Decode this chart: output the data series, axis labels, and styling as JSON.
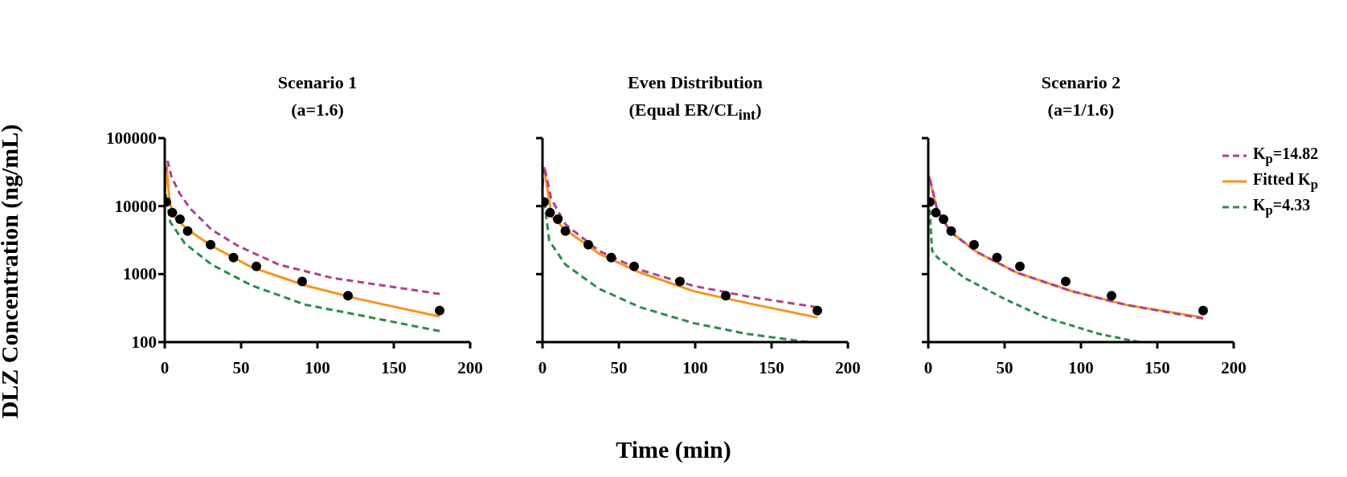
{
  "chart_data": [
    {
      "type": "line",
      "title": "Scenario 1",
      "subtitle": "(a=1.6)",
      "ylabel": "DLZ Concentration (ng/mL)",
      "xlim": [
        0,
        200
      ],
      "xticks": [
        0,
        50,
        100,
        150,
        200
      ],
      "ylim": [
        100,
        100000
      ],
      "yticks": [
        100,
        1000,
        10000,
        100000
      ],
      "log": true,
      "grid": false,
      "legend": false,
      "series": [
        {
          "color": "#b0418f",
          "line_style": "dashed",
          "x": [
            0,
            2,
            4.4,
            10,
            16.7,
            30.7,
            48,
            74.6,
            109.6,
            144.7,
            180
          ],
          "values": [
            30000,
            45000,
            27000,
            15000,
            9200,
            4500,
            2600,
            1380,
            880,
            670,
            510
          ]
        },
        {
          "color": "#f7931e",
          "line_style": "solid",
          "x": [
            0,
            1.2,
            3,
            6,
            15,
            30.7,
            57,
            92,
            127,
            180
          ],
          "values": [
            13000,
            40000,
            12000,
            7000,
            4500,
            2600,
            1260,
            680,
            430,
            237
          ]
        },
        {
          "color": "#2e8b4e",
          "line_style": "dashed",
          "x": [
            0,
            1,
            3.5,
            13,
            30.7,
            57,
            92,
            127,
            180
          ],
          "values": [
            12000,
            15000,
            5900,
            2850,
            1380,
            680,
            355,
            250,
            145
          ]
        },
        {
          "type": "scatter",
          "color": "#000000",
          "marker": "circle",
          "x": [
            1,
            5,
            10,
            15,
            30,
            45,
            60,
            90,
            120,
            180
          ],
          "values": [
            11500,
            8000,
            6400,
            4300,
            2700,
            1750,
            1300,
            780,
            480,
            290
          ]
        }
      ]
    },
    {
      "type": "line",
      "title": "Even Distribution",
      "subtitle": "(Equal ER/CL$_{int}$)",
      "xlabel": "Time (min)",
      "xlim": [
        0,
        200
      ],
      "xticks": [
        0,
        50,
        100,
        150,
        200
      ],
      "ylim": [
        100,
        100000
      ],
      "yticks": [
        {
          "value": 100,
          "label": null
        },
        {
          "value": 1000,
          "label": null
        },
        {
          "value": 10000,
          "label": null
        },
        {
          "value": 100000,
          "label": null
        }
      ],
      "log": true,
      "grid": false,
      "legend": false,
      "tick_labels": "x",
      "series": [
        {
          "color": "#b0418f",
          "line_style": "dashed",
          "x": [
            0,
            1.2,
            5.6,
            15,
            37,
            64,
            99,
            134,
            180
          ],
          "values": [
            20000,
            39000,
            13000,
            5400,
            2200,
            1150,
            670,
            470,
            325
          ]
        },
        {
          "color": "#f7931e",
          "line_style": "solid",
          "x": [
            1.2,
            6,
            15,
            37,
            64,
            99,
            134,
            180
          ],
          "values": [
            35000,
            7000,
            4500,
            2000,
            1050,
            560,
            375,
            230
          ]
        },
        {
          "color": "#2e8b4e",
          "line_style": "dashed",
          "x": [
            0,
            1,
            4.4,
            15,
            37,
            64,
            99,
            134,
            174
          ],
          "values": [
            10000,
            13000,
            3100,
            1380,
            610,
            325,
            190,
            132,
            100
          ]
        },
        {
          "type": "scatter",
          "color": "#000000",
          "marker": "circle",
          "x": [
            1,
            5,
            10,
            15,
            30,
            45,
            60,
            90,
            120,
            180
          ],
          "values": [
            11500,
            8000,
            6400,
            4300,
            2700,
            1750,
            1300,
            780,
            480,
            290
          ]
        }
      ]
    },
    {
      "type": "line",
      "title": "Scenario 2",
      "subtitle": "(a=1/1.6)",
      "xlim": [
        0,
        200
      ],
      "xticks": [
        0,
        50,
        100,
        150,
        200
      ],
      "ylim": [
        100,
        100000
      ],
      "yticks": [
        {
          "value": 100,
          "label": null
        },
        {
          "value": 1000,
          "label": null
        },
        {
          "value": 10000,
          "label": null
        },
        {
          "value": 100000,
          "label": null
        }
      ],
      "log": true,
      "grid": false,
      "legend": "right",
      "tick_labels": "x",
      "series": [
        {
          "name": "K$_{p}$=14.82",
          "color": "#b0418f",
          "line_style": "dashed",
          "x": [
            0,
            0.5,
            6,
            15,
            32,
            58,
            94,
            129,
            180
          ],
          "values": [
            15000,
            28500,
            8500,
            4100,
            2100,
            1050,
            560,
            355,
            222
          ]
        },
        {
          "name": "Fitted K$_{p}$",
          "color": "#f7931e",
          "line_style": "solid",
          "x": [
            0,
            0.5,
            6,
            15,
            32,
            58,
            94,
            129,
            180
          ],
          "values": [
            14000,
            27000,
            8500,
            4100,
            2100,
            1050,
            560,
            355,
            230
          ]
        },
        {
          "name": "K$_{p}$=4.33",
          "color": "#2e8b4e",
          "line_style": "dashed",
          "x": [
            0,
            0.5,
            2.5,
            6,
            23.7,
            50,
            76.7,
            111.8,
            138
          ],
          "values": [
            10000,
            13000,
            2200,
            1750,
            880,
            430,
            230,
            132,
            100
          ]
        },
        {
          "type": "scatter",
          "color": "#000000",
          "marker": "circle",
          "x": [
            1,
            5,
            10,
            15,
            30,
            45,
            60,
            90,
            120,
            180
          ],
          "values": [
            11500,
            8000,
            6400,
            4300,
            2700,
            1750,
            1300,
            780,
            480,
            290
          ]
        }
      ]
    }
  ]
}
